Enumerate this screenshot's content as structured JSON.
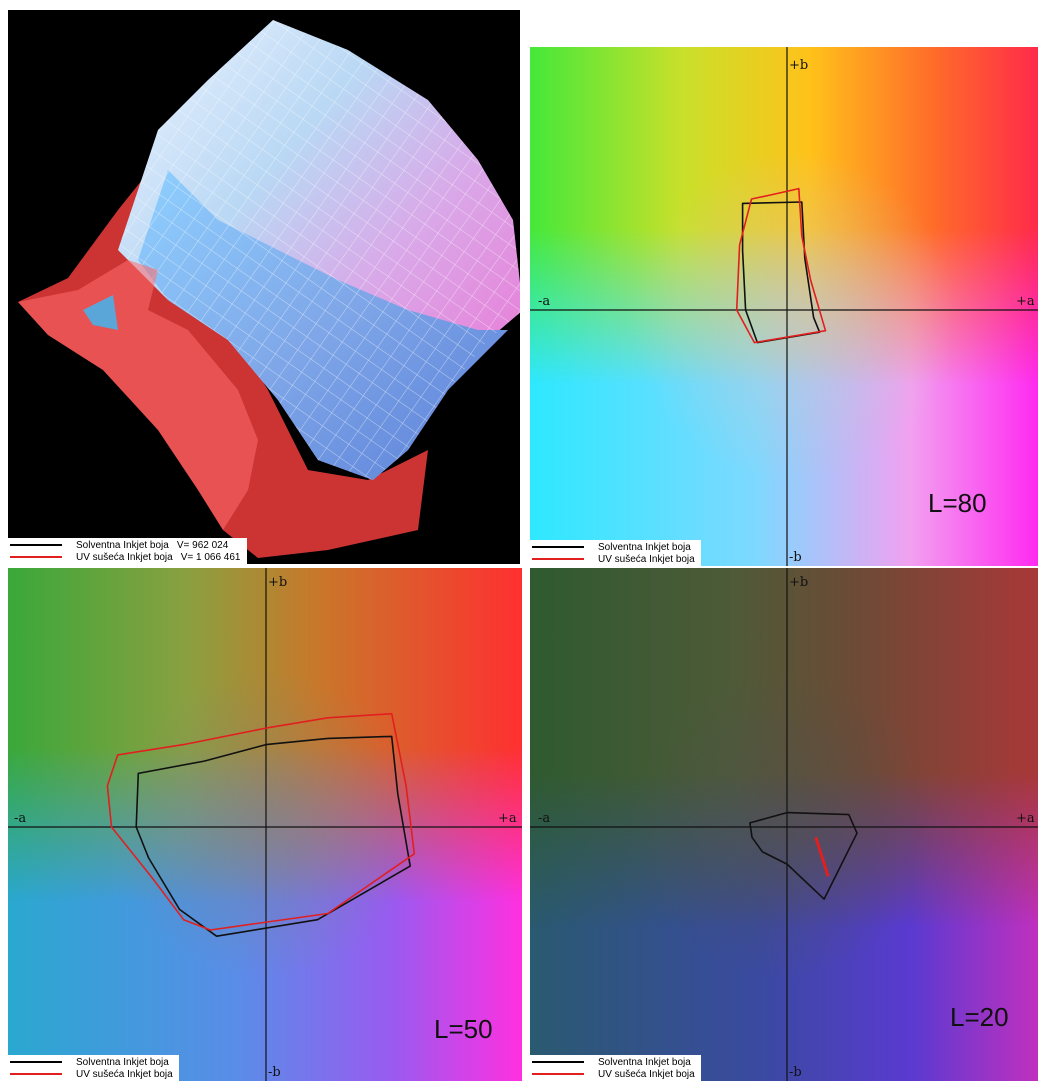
{
  "legend": {
    "series": [
      {
        "name": "Solventna Inkjet boja",
        "color": "#111111",
        "volume": "V= 962 024"
      },
      {
        "name": "UV sušeća Inkjet boja",
        "color": "#e11f1f",
        "volume": "V= 1 066 461"
      }
    ]
  },
  "axes": {
    "plus_a": "+a",
    "minus_a": "-a",
    "plus_b": "+b",
    "minus_b": "-b"
  },
  "chart_data": [
    {
      "type": "other",
      "subtype": "3d-gamut-volume",
      "series": [
        {
          "name": "Solventna Inkjet boja",
          "volume": "V= 962 024"
        },
        {
          "name": "UV sušeća Inkjet boja",
          "volume": "V= 1 066 461"
        }
      ]
    },
    {
      "type": "line",
      "subtype": "gamut-slice",
      "annotation": "L=80",
      "xlim": [
        -120,
        120
      ],
      "ylim": [
        -120,
        120
      ],
      "series": [
        {
          "name": "Solventna Inkjet boja",
          "color": "#111111",
          "points": [
            [
              -30,
              72
            ],
            [
              10,
              73
            ],
            [
              12,
              35
            ],
            [
              18,
              -5
            ],
            [
              22,
              -15
            ],
            [
              -20,
              -22
            ],
            [
              -28,
              0
            ],
            [
              -30,
              40
            ]
          ]
        },
        {
          "name": "UV sušeća Inkjet boja",
          "color": "#e11f1f",
          "points": [
            [
              -24,
              75
            ],
            [
              -10,
              78
            ],
            [
              8,
              82
            ],
            [
              10,
              50
            ],
            [
              16,
              20
            ],
            [
              26,
              -14
            ],
            [
              -22,
              -22
            ],
            [
              -34,
              0
            ],
            [
              -32,
              44
            ]
          ]
        }
      ]
    },
    {
      "type": "line",
      "subtype": "gamut-slice",
      "annotation": "L=50",
      "xlim": [
        -120,
        120
      ],
      "ylim": [
        -120,
        120
      ],
      "series": [
        {
          "name": "Solventna Inkjet boja",
          "color": "#111111",
          "points": [
            [
              -62,
              26
            ],
            [
              -30,
              32
            ],
            [
              0,
              40
            ],
            [
              30,
              43
            ],
            [
              61,
              44
            ],
            [
              64,
              16
            ],
            [
              70,
              -19
            ],
            [
              25,
              -45
            ],
            [
              -24,
              -53
            ],
            [
              -42,
              -40
            ],
            [
              -57,
              -15
            ],
            [
              -63,
              0
            ]
          ]
        },
        {
          "name": "UV sušeća Inkjet boja",
          "color": "#e11f1f",
          "points": [
            [
              -72,
              35
            ],
            [
              -40,
              40
            ],
            [
              0,
              48
            ],
            [
              30,
              53
            ],
            [
              61,
              55
            ],
            [
              68,
              20
            ],
            [
              72,
              -13
            ],
            [
              30,
              -42
            ],
            [
              -27,
              -50
            ],
            [
              -40,
              -45
            ],
            [
              -55,
              -25
            ],
            [
              -75,
              0
            ],
            [
              -77,
              20
            ]
          ]
        }
      ]
    },
    {
      "type": "line",
      "subtype": "gamut-slice",
      "annotation": "L=20",
      "xlim": [
        -120,
        120
      ],
      "ylim": [
        -120,
        120
      ],
      "series": [
        {
          "name": "Solventna Inkjet boja",
          "color": "#111111",
          "points": [
            [
              -18,
              2
            ],
            [
              0,
              7
            ],
            [
              30,
              6
            ],
            [
              34,
              -3
            ],
            [
              18,
              -35
            ],
            [
              0,
              -18
            ],
            [
              -12,
              -12
            ],
            [
              -17,
              -5
            ]
          ]
        },
        {
          "name": "UV sušeća Inkjet boja",
          "color": "#e11f1f",
          "points": [
            [
              14,
              -5
            ],
            [
              20,
              -24
            ]
          ]
        }
      ]
    }
  ]
}
